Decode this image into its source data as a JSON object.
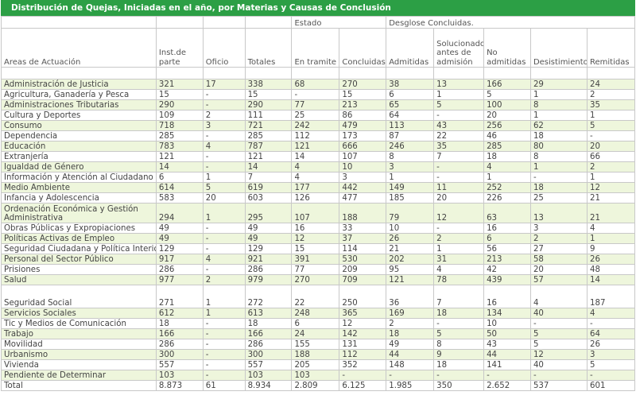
{
  "title": "Distribución de Quejas, Iniciadas en el año, por Materias y Causas de Conclusión",
  "group_headers": {
    "estado": "Estado",
    "desglose": "Desglose Concluidas."
  },
  "columns": [
    "Areas de Actuación",
    "Inst.de parte",
    "Oficio",
    "Totales",
    "En tramite",
    "Concluidas",
    "Admitidas",
    "Solucionado antes de admisión",
    "No admitidas",
    "Desistimientos",
    "Remitidas"
  ],
  "rows": [
    [
      "Administración de Justicia",
      "321",
      "17",
      "338",
      "68",
      "270",
      "38",
      "13",
      "166",
      "29",
      "24"
    ],
    [
      "Agricultura, Ganadería y Pesca",
      "15",
      "-",
      "15",
      "-",
      "15",
      "6",
      "1",
      "5",
      "1",
      "2"
    ],
    [
      "Administraciones Tributarias",
      "290",
      "-",
      "290",
      "77",
      "213",
      "65",
      "5",
      "100",
      "8",
      "35"
    ],
    [
      "Cultura y Deportes",
      "109",
      "2",
      "111",
      "25",
      "86",
      "64",
      "-",
      "20",
      "1",
      "1"
    ],
    [
      "Consumo",
      "718",
      "3",
      "721",
      "242",
      "479",
      "113",
      "43",
      "256",
      "62",
      "5"
    ],
    [
      "Dependencia",
      "285",
      "-",
      "285",
      "112",
      "173",
      "87",
      "22",
      "46",
      "18",
      "-"
    ],
    [
      "Educación",
      "783",
      "4",
      "787",
      "121",
      "666",
      "246",
      "35",
      "285",
      "80",
      "20"
    ],
    [
      "Extranjería",
      "121",
      "-",
      "121",
      "14",
      "107",
      "8",
      "7",
      "18",
      "8",
      "66"
    ],
    [
      "Igualdad de Género",
      "14",
      "-",
      "14",
      "4",
      "10",
      "3",
      "-",
      "4",
      "1",
      "2"
    ],
    [
      "Información y Atención al Ciudadano",
      "6",
      "1",
      "7",
      "4",
      "3",
      "1",
      "-",
      "1",
      "-",
      "1"
    ],
    [
      "Medio Ambiente",
      "614",
      "5",
      "619",
      "177",
      "442",
      "149",
      "11",
      "252",
      "18",
      "12"
    ],
    [
      "Infancia y Adolescencia",
      "583",
      "20",
      "603",
      "126",
      "477",
      "185",
      "20",
      "226",
      "25",
      "21"
    ],
    [
      "Ordenación Económica y Gestión Administrativa",
      "294",
      "1",
      "295",
      "107",
      "188",
      "79",
      "12",
      "63",
      "13",
      "21"
    ],
    [
      "Obras Públicas y Expropiaciones",
      "49",
      "-",
      "49",
      "16",
      "33",
      "10",
      "-",
      "16",
      "3",
      "4"
    ],
    [
      "Políticas Activas de Empleo",
      "49",
      "-",
      "49",
      "12",
      "37",
      "26",
      "2",
      "6",
      "2",
      "1"
    ],
    [
      "Seguridad Ciudadana y Política Interior",
      "129",
      "-",
      "129",
      "15",
      "114",
      "21",
      "1",
      "56",
      "27",
      "9"
    ],
    [
      "Personal del Sector Público",
      "917",
      "4",
      "921",
      "391",
      "530",
      "202",
      "31",
      "213",
      "58",
      "26"
    ],
    [
      "Prisiones",
      "286",
      "-",
      "286",
      "77",
      "209",
      "95",
      "4",
      "42",
      "20",
      "48"
    ],
    [
      "Salud",
      "977",
      "2",
      "979",
      "270",
      "709",
      "121",
      "78",
      "439",
      "57",
      "14"
    ],
    [
      "Seguridad Social",
      "271",
      "1",
      "272",
      "22",
      "250",
      "36",
      "7",
      "16",
      "4",
      "187"
    ],
    [
      "Servicios Sociales",
      "612",
      "1",
      "613",
      "248",
      "365",
      "169",
      "18",
      "134",
      "40",
      "4"
    ],
    [
      "Tic y Medios de Comunicación",
      "18",
      "-",
      "18",
      "6",
      "12",
      "2",
      "-",
      "10",
      "-",
      "-"
    ],
    [
      "Trabajo",
      "166",
      "-",
      "166",
      "24",
      "142",
      "18",
      "5",
      "50",
      "5",
      "64"
    ],
    [
      "Movilidad",
      "286",
      "-",
      "286",
      "155",
      "131",
      "49",
      "8",
      "43",
      "5",
      "26"
    ],
    [
      "Urbanismo",
      "300",
      "-",
      "300",
      "188",
      "112",
      "44",
      "9",
      "44",
      "12",
      "3"
    ],
    [
      "Vivienda",
      "557",
      "-",
      "557",
      "205",
      "352",
      "148",
      "18",
      "141",
      "40",
      "5"
    ],
    [
      "Pendiente de Determinar",
      "103",
      "-",
      "103",
      "103",
      "-",
      "-",
      "-",
      "-",
      "-",
      "-"
    ],
    [
      "Total",
      "8.873",
      "61",
      "8.934",
      "2.809",
      "6.125",
      "1.985",
      "350",
      "2.652",
      "537",
      "601"
    ]
  ],
  "colors": {
    "title_bg": "#2c9f45",
    "stripe": "#eef6dc",
    "border": "#c8c8c8"
  }
}
